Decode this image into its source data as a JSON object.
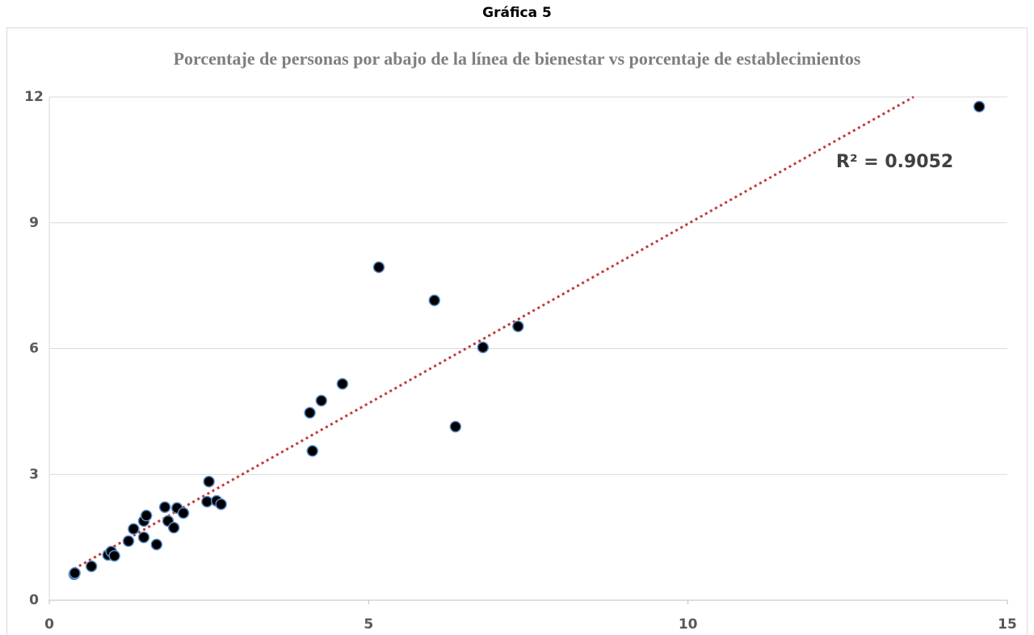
{
  "header": "Gráfica 5",
  "chart_data": {
    "type": "scatter",
    "title": "Porcentaje de personas por abajo de la línea de bienestar vs porcentaje de establecimientos",
    "x": [
      0.39,
      0.4,
      0.66,
      0.92,
      0.97,
      1.02,
      1.24,
      1.32,
      1.48,
      1.48,
      1.52,
      1.68,
      1.81,
      1.86,
      1.95,
      2.0,
      2.1,
      2.47,
      2.5,
      2.62,
      2.69,
      4.08,
      4.12,
      4.26,
      4.59,
      5.16,
      6.03,
      6.36,
      6.79,
      7.34,
      14.56
    ],
    "series": [
      {
        "color": "#000000",
        "values": [
          0.62,
          0.65,
          0.81,
          1.08,
          1.16,
          1.06,
          1.41,
          1.7,
          1.5,
          1.89,
          2.02,
          1.33,
          2.22,
          1.89,
          1.73,
          2.2,
          2.08,
          2.35,
          2.83,
          2.37,
          2.29,
          4.47,
          3.56,
          4.76,
          5.16,
          7.94,
          7.15,
          4.14,
          6.03,
          6.53,
          11.77
        ]
      }
    ],
    "marker_edge_color": "#5b8fc9",
    "trendline": {
      "slope": 0.856,
      "intercept": 0.416,
      "color": "#c0393b",
      "label": "R² = 0.9052"
    },
    "xlim": [
      0,
      15
    ],
    "xticks": [
      0,
      5,
      10,
      15
    ],
    "ylim": [
      0,
      12
    ],
    "yticks": [
      0,
      3,
      6,
      9,
      12
    ],
    "grid": true
  }
}
